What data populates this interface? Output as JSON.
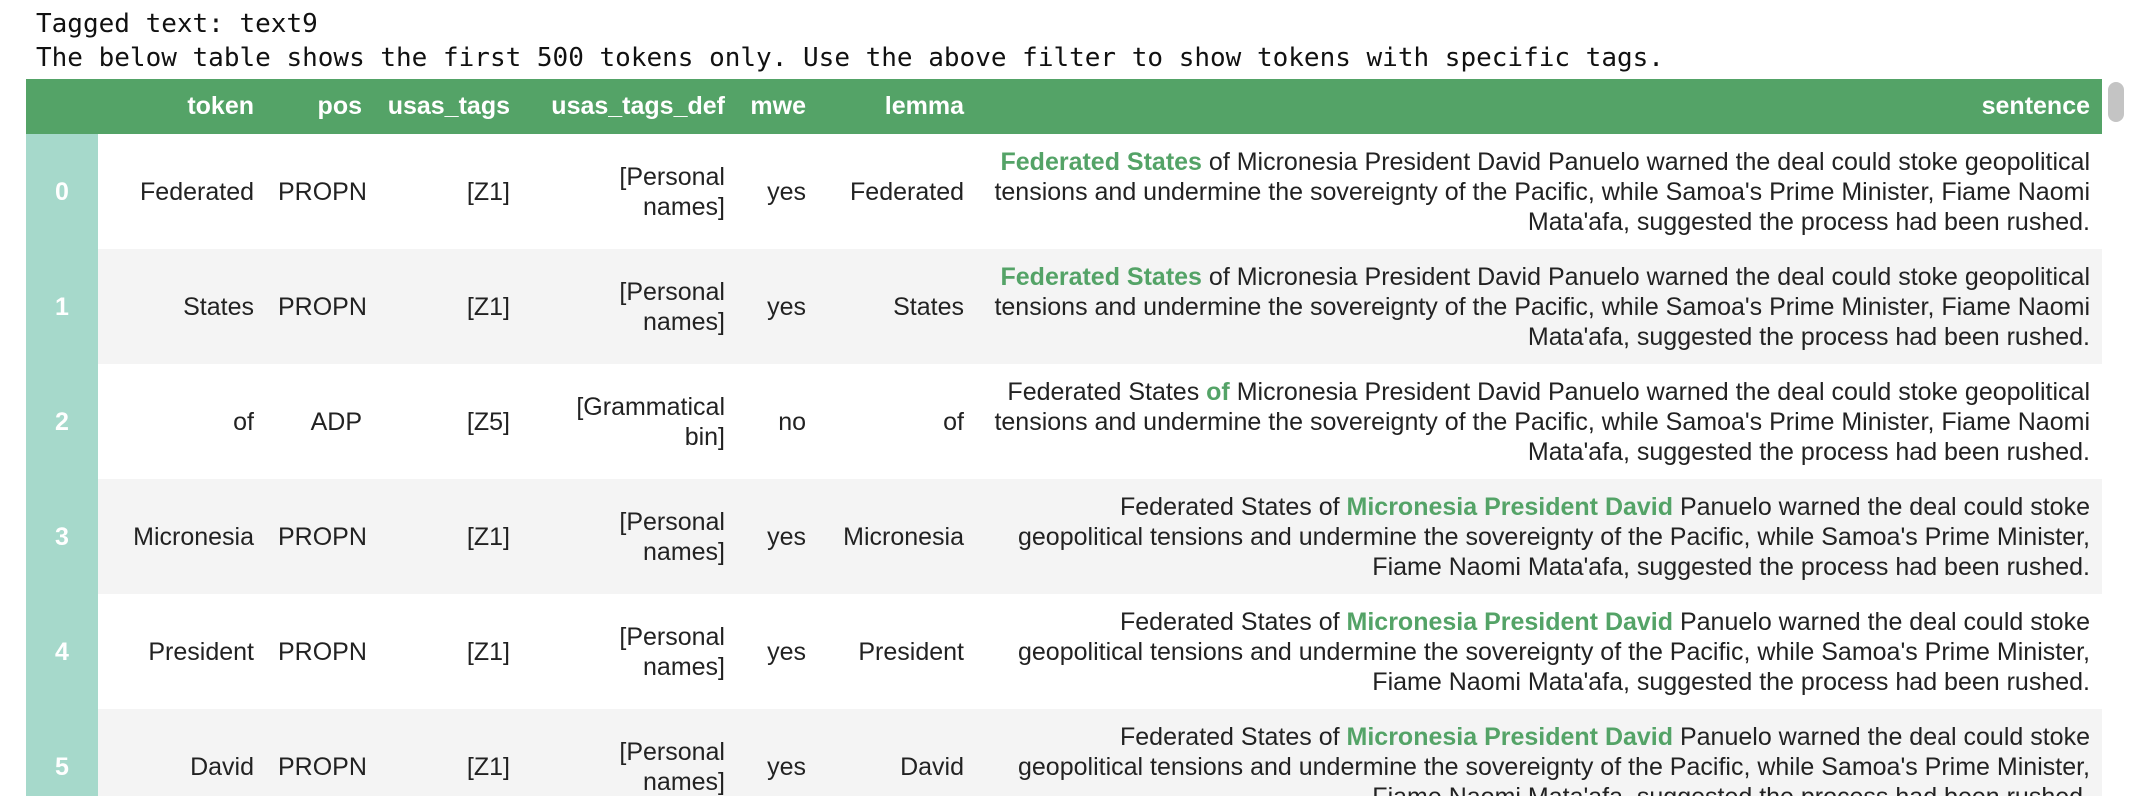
{
  "output": {
    "line1": "Tagged text: text9",
    "line2": "The below table shows the first 500 tokens only. Use the above filter to show tokens with specific tags."
  },
  "table": {
    "columns": [
      "",
      "token",
      "pos",
      "usas_tags",
      "usas_tags_def",
      "mwe",
      "lemma",
      "sentence"
    ],
    "rows": [
      {
        "index": "0",
        "token": "Federated",
        "pos": "PROPN",
        "usas_tags": "[Z1]",
        "usas_tags_def": "[Personal names]",
        "mwe": "yes",
        "lemma": "Federated",
        "sentence_before": "",
        "sentence_highlight": "Federated States",
        "sentence_after": " of Micronesia President David Panuelo warned the deal could stoke geopolitical tensions and undermine the sovereignty of the Pacific, while Samoa's Prime Minister, Fiame Naomi Mata'afa, suggested the process had been rushed."
      },
      {
        "index": "1",
        "token": "States",
        "pos": "PROPN",
        "usas_tags": "[Z1]",
        "usas_tags_def": "[Personal names]",
        "mwe": "yes",
        "lemma": "States",
        "sentence_before": "",
        "sentence_highlight": "Federated States",
        "sentence_after": " of Micronesia President David Panuelo warned the deal could stoke geopolitical tensions and undermine the sovereignty of the Pacific, while Samoa's Prime Minister, Fiame Naomi Mata'afa, suggested the process had been rushed."
      },
      {
        "index": "2",
        "token": "of",
        "pos": "ADP",
        "usas_tags": "[Z5]",
        "usas_tags_def": "[Grammatical bin]",
        "mwe": "no",
        "lemma": "of",
        "sentence_before": "Federated States ",
        "sentence_highlight": "of",
        "sentence_after": " Micronesia President David Panuelo warned the deal could stoke geopolitical tensions and undermine the sovereignty of the Pacific, while Samoa's Prime Minister, Fiame Naomi Mata'afa, suggested the process had been rushed."
      },
      {
        "index": "3",
        "token": "Micronesia",
        "pos": "PROPN",
        "usas_tags": "[Z1]",
        "usas_tags_def": "[Personal names]",
        "mwe": "yes",
        "lemma": "Micronesia",
        "sentence_before": "Federated States of ",
        "sentence_highlight": "Micronesia President David",
        "sentence_after": " Panuelo warned the deal could stoke geopolitical tensions and undermine the sovereignty of the Pacific, while Samoa's Prime Minister, Fiame Naomi Mata'afa, suggested the process had been rushed."
      },
      {
        "index": "4",
        "token": "President",
        "pos": "PROPN",
        "usas_tags": "[Z1]",
        "usas_tags_def": "[Personal names]",
        "mwe": "yes",
        "lemma": "President",
        "sentence_before": "Federated States of ",
        "sentence_highlight": "Micronesia President David",
        "sentence_after": " Panuelo warned the deal could stoke geopolitical tensions and undermine the sovereignty of the Pacific, while Samoa's Prime Minister, Fiame Naomi Mata'afa, suggested the process had been rushed."
      },
      {
        "index": "5",
        "token": "David",
        "pos": "PROPN",
        "usas_tags": "[Z1]",
        "usas_tags_def": "[Personal names]",
        "mwe": "yes",
        "lemma": "David",
        "sentence_before": "Federated States of ",
        "sentence_highlight": "Micronesia President David",
        "sentence_after": " Panuelo warned the deal could stoke geopolitical tensions and undermine the sovereignty of the Pacific, while Samoa's Prime Minister, Fiame Naomi Mata'afa, suggested the process had been rushed."
      }
    ]
  },
  "colors": {
    "header_bg": "#54a367",
    "index_bg": "#a6d9cb",
    "highlight": "#54a367",
    "stripe": "#f4f4f4"
  }
}
